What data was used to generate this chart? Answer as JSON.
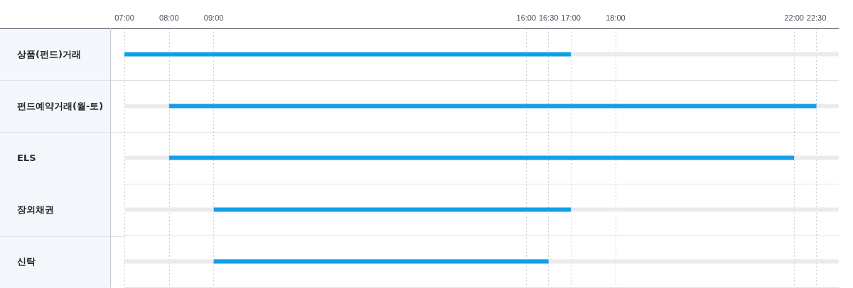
{
  "chart_data": {
    "type": "bar",
    "orientation": "horizontal",
    "categories": [
      "상품(펀드)거래",
      "펀드예약거래(월-토)",
      "ELS",
      "장외채권",
      "신탁"
    ],
    "base": [
      7,
      8,
      8,
      9,
      9
    ],
    "values": [
      10,
      14.5,
      14,
      8,
      7.5
    ],
    "color": "#139fe6",
    "xlim": [
      7,
      23
    ],
    "xticks": [
      {
        "value": 7,
        "label": "07:00"
      },
      {
        "value": 8,
        "label": "08:00"
      },
      {
        "value": 9,
        "label": "09:00"
      },
      {
        "value": 16,
        "label": "16:00"
      },
      {
        "value": 16.5,
        "label": "16:30"
      },
      {
        "value": 17,
        "label": "17:00"
      },
      {
        "value": 18,
        "label": "18:00"
      },
      {
        "value": 22,
        "label": "22:00"
      },
      {
        "value": 22.5,
        "label": "22:30"
      }
    ],
    "grid": true
  }
}
